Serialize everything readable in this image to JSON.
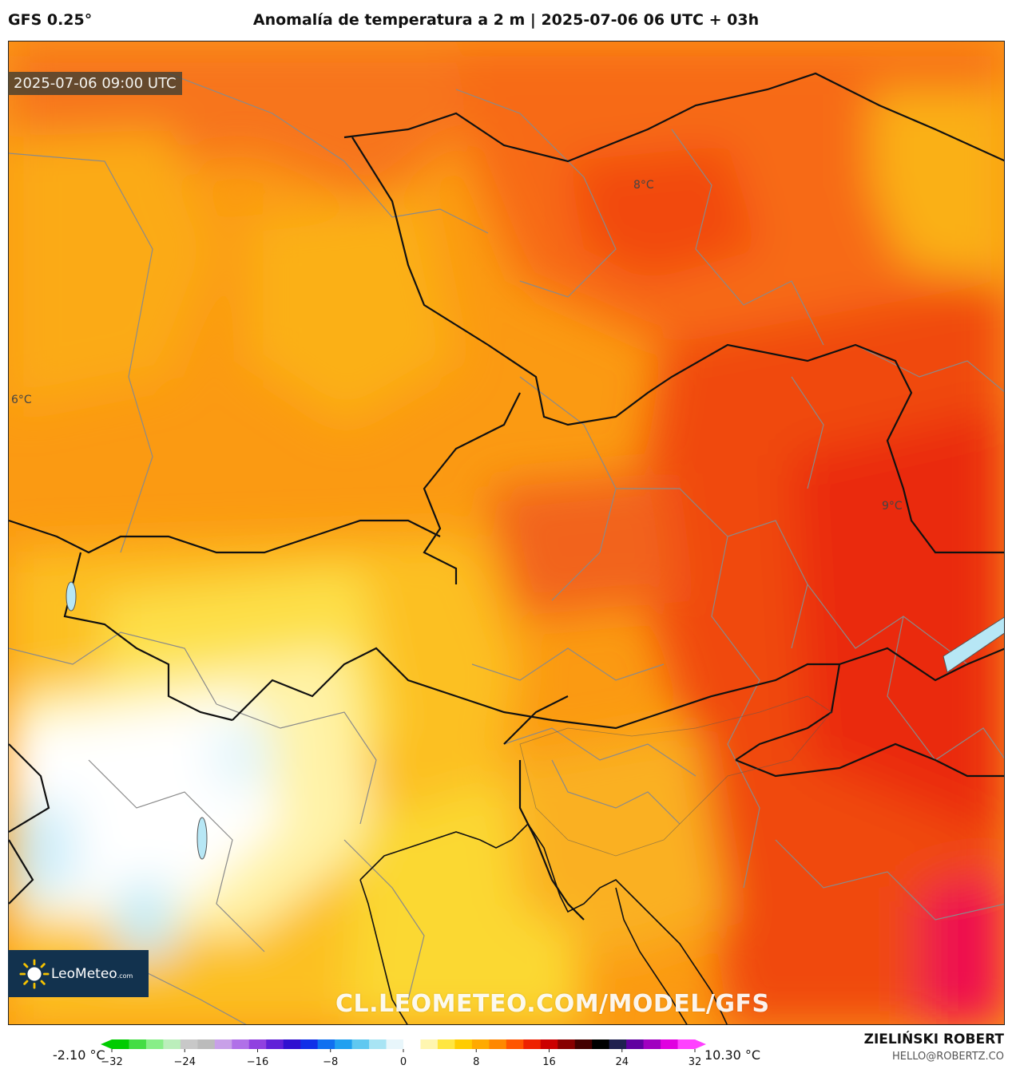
{
  "header": {
    "model": "GFS 0.25°",
    "title": "Anomalía de temperatura a 2 m | 2025-07-06 06 UTC + 03h"
  },
  "map": {
    "valid_time": "2025-07-06 09:00 UTC",
    "contour_labels": {
      "a": "8°C",
      "b": "6°C",
      "c": "9°C"
    },
    "watermark": "CL.LEOMETEO.COM/MODEL/GFS"
  },
  "logo": {
    "text": "LeoMeteo",
    "suffix": ".com"
  },
  "colorbar": {
    "min_label": "-2.10 °C",
    "max_label": "10.30 °C",
    "ticks": [
      "−32",
      "−24",
      "−16",
      "−8",
      "0",
      "8",
      "16",
      "24",
      "32"
    ],
    "range": [
      -32,
      32
    ],
    "colors": [
      "#00cc00",
      "#44dd44",
      "#88ee88",
      "#bbeebb",
      "#c8c8c8",
      "#bbbbbb",
      "#c8a0e8",
      "#b070e8",
      "#9040e0",
      "#6020d8",
      "#3010d0",
      "#1030e8",
      "#1070f0",
      "#20a0f0",
      "#60c8f0",
      "#a8e4f4",
      "#e8f6fb",
      "#ffffff",
      "#fff6b0",
      "#ffe640",
      "#ffcc00",
      "#ffaa00",
      "#ff8800",
      "#ff5500",
      "#ee2200",
      "#cc0000",
      "#880000",
      "#440000",
      "#000000",
      "#202050",
      "#6000a0",
      "#a000c0",
      "#e000e0",
      "#ff40ff"
    ]
  },
  "credit": {
    "name": "ZIELIŃSKI ROBERT",
    "email": "HELLO@ROBERTZ.CO"
  }
}
